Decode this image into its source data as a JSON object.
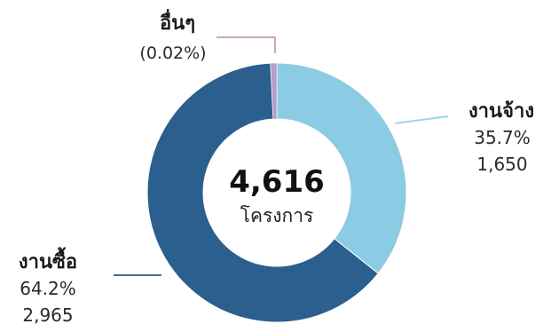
{
  "chart_data": {
    "type": "pie",
    "variant": "donut",
    "center": {
      "total": "4,616",
      "unit": "โครงการ"
    },
    "slices": [
      {
        "name": "อื่นๆ",
        "percent_label": "(0.02%)",
        "percent": 0.02,
        "count": null,
        "color": "#b79bc9"
      },
      {
        "name": "งานจ้าง",
        "percent_label": "35.7%",
        "percent": 35.7,
        "count_label": "1,650",
        "count": 1650,
        "color": "#8ccbe4"
      },
      {
        "name": "งานซื้อ",
        "percent_label": "64.2%",
        "percent": 64.2,
        "count_label": "2,965",
        "count": 2965,
        "color": "#2a5f8e"
      }
    ]
  }
}
